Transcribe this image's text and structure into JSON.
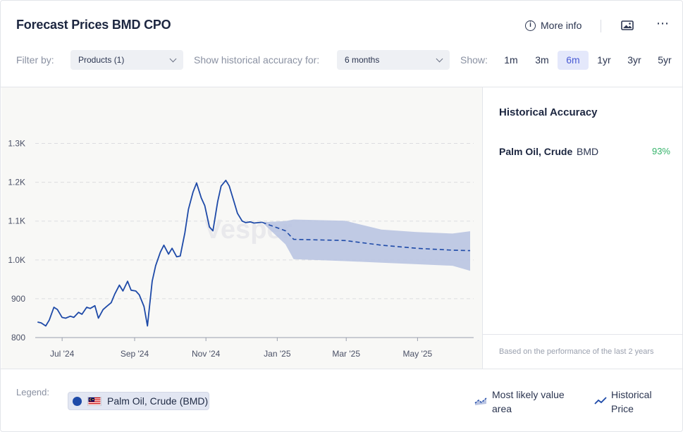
{
  "header": {
    "title": "Forecast Prices BMD CPO",
    "more_info_label": "More info",
    "image_icon": "image-icon",
    "menu_icon": "more-dots-icon"
  },
  "filters": {
    "filter_by_label": "Filter by:",
    "products_value": "Products (1)",
    "accuracy_label": "Show historical accuracy for:",
    "accuracy_value": "6 months",
    "show_label": "Show:",
    "ranges": [
      "1m",
      "3m",
      "6m",
      "1yr",
      "3yr",
      "5yr"
    ],
    "active_range": "6m"
  },
  "side_panel": {
    "title": "Historical Accuracy",
    "product_name": "Palm Oil, Crude",
    "exchange": "BMD",
    "accuracy": "93%",
    "footnote": "Based on the performance of the last 2 years"
  },
  "legend": {
    "label": "Legend:",
    "product_chip": "Palm Oil, Crude (BMD)",
    "most_likely_line1": "Most likely value",
    "most_likely_line2": "area",
    "historical_line1": "Historical",
    "historical_line2": "Price"
  },
  "colors": {
    "line": "#1e4aa8",
    "band": "#b9c4e2",
    "accuracy_good": "#34b36a",
    "active_tab": "#4a5bd4"
  },
  "chart_data": {
    "type": "line",
    "title": "",
    "ylabel": "",
    "xlabel": "",
    "ylim": [
      800,
      1350
    ],
    "y_ticks": [
      800,
      900,
      1000,
      1100,
      1200,
      1300
    ],
    "y_tick_labels": [
      "800",
      "900",
      "1.0K",
      "1.1K",
      "1.2K",
      "1.3K"
    ],
    "x_tick_labels": [
      "Jul '24",
      "Sep '24",
      "Nov '24",
      "Jan '25",
      "Mar '25",
      "May '25"
    ],
    "x_tick_dates": [
      "2024-07-01",
      "2024-09-01",
      "2024-11-01",
      "2025-01-01",
      "2025-03-01",
      "2025-05-01"
    ],
    "x_range": [
      "2024-06-08",
      "2025-06-18"
    ],
    "grid": true,
    "watermark": "Vesper",
    "series": [
      {
        "name": "Historical Price",
        "style": "solid",
        "dates": [
          "2024-06-10",
          "2024-06-13",
          "2024-06-17",
          "2024-06-20",
          "2024-06-24",
          "2024-06-27",
          "2024-07-01",
          "2024-07-04",
          "2024-07-08",
          "2024-07-11",
          "2024-07-15",
          "2024-07-18",
          "2024-07-22",
          "2024-07-25",
          "2024-07-29",
          "2024-08-01",
          "2024-08-05",
          "2024-08-08",
          "2024-08-12",
          "2024-08-15",
          "2024-08-19",
          "2024-08-22",
          "2024-08-26",
          "2024-08-29",
          "2024-09-02",
          "2024-09-05",
          "2024-09-09",
          "2024-09-12",
          "2024-09-16",
          "2024-09-19",
          "2024-09-23",
          "2024-09-26",
          "2024-09-30",
          "2024-10-03",
          "2024-10-07",
          "2024-10-10",
          "2024-10-14",
          "2024-10-17",
          "2024-10-21",
          "2024-10-24",
          "2024-10-28",
          "2024-10-31",
          "2024-11-04",
          "2024-11-07",
          "2024-11-11",
          "2024-11-14",
          "2024-11-18",
          "2024-11-21",
          "2024-11-25",
          "2024-11-28",
          "2024-12-02",
          "2024-12-05",
          "2024-12-09",
          "2024-12-12",
          "2024-12-16",
          "2024-12-19"
        ],
        "values": [
          840,
          838,
          830,
          845,
          878,
          872,
          852,
          850,
          855,
          852,
          865,
          860,
          878,
          875,
          882,
          850,
          872,
          880,
          890,
          912,
          935,
          920,
          945,
          922,
          920,
          910,
          880,
          830,
          945,
          985,
          1020,
          1038,
          1015,
          1030,
          1008,
          1010,
          1070,
          1130,
          1175,
          1198,
          1160,
          1140,
          1085,
          1075,
          1150,
          1190,
          1205,
          1190,
          1150,
          1120,
          1100,
          1096,
          1098,
          1095,
          1096,
          1097
        ]
      },
      {
        "name": "Most likely value",
        "style": "dashed",
        "dates": [
          "2024-12-19",
          "2025-01-08",
          "2025-01-15",
          "2025-02-28",
          "2025-03-31",
          "2025-04-30",
          "2025-05-31",
          "2025-06-15"
        ],
        "values": [
          1097,
          1075,
          1053,
          1050,
          1038,
          1030,
          1025,
          1024
        ]
      }
    ],
    "band": {
      "name": "Most likely value area",
      "dates": [
        "2024-12-19",
        "2025-01-08",
        "2025-01-15",
        "2025-02-28",
        "2025-03-31",
        "2025-04-30",
        "2025-05-31",
        "2025-06-15"
      ],
      "upper": [
        1097,
        1100,
        1104,
        1101,
        1078,
        1072,
        1068,
        1074
      ],
      "lower": [
        1097,
        1040,
        1002,
        997,
        993,
        989,
        985,
        972
      ]
    }
  }
}
